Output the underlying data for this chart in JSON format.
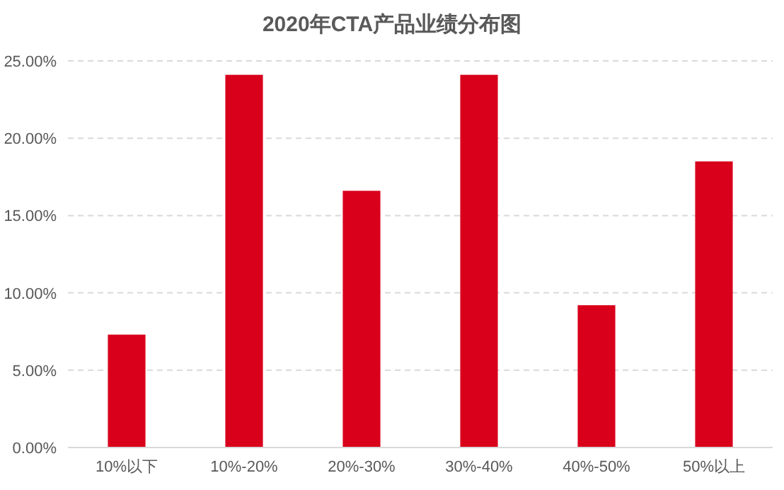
{
  "chart_data": {
    "type": "bar",
    "title": "2020年CTA产品业绩分布图",
    "categories": [
      "10%以下",
      "10%-20%",
      "20%-30%",
      "30%-40%",
      "40%-50%",
      "50%以上"
    ],
    "values": [
      7.3,
      24.1,
      16.6,
      24.1,
      9.2,
      18.5
    ],
    "color": "#d9001b",
    "ylim": [
      0,
      25
    ],
    "yticks": [
      {
        "value": 0,
        "label": "0.00%"
      },
      {
        "value": 5,
        "label": "5.00%"
      },
      {
        "value": 10,
        "label": "10.00%"
      },
      {
        "value": 15,
        "label": "15.00%"
      },
      {
        "value": 20,
        "label": "20.00%"
      },
      {
        "value": 25,
        "label": "25.00%"
      }
    ],
    "grid": "y"
  }
}
